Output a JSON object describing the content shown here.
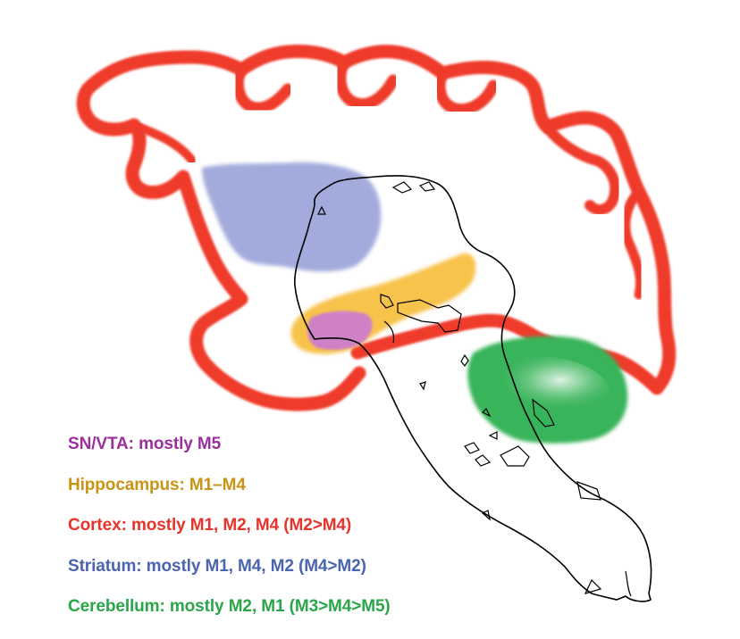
{
  "legend": [
    {
      "text": "SN/VTA: mostly M5",
      "color": "#9b2f9e"
    },
    {
      "text": "Hippocampus: M1–M4",
      "color": "#c99316"
    },
    {
      "text": "Cortex: mostly M1, M2, M4 (M2>M4)",
      "color": "#e8332b"
    },
    {
      "text": "Striatum: mostly M1, M4, M2 (M4>M2)",
      "color": "#4a64ad"
    },
    {
      "text": "Cerebellum: mostly M2, M1 (M3>M4>M5)",
      "color": "#2aa64a"
    }
  ],
  "regions": {
    "cortex": {
      "color": "#ef3b2c"
    },
    "striatum": {
      "color": "#99a3d8"
    },
    "hippocampus": {
      "color": "#f7c043"
    },
    "sn_vta": {
      "color": "#cc7bd1"
    },
    "cerebellum": {
      "color": "#37b45a"
    },
    "brainstem_outline": {
      "color": "#000000"
    }
  }
}
